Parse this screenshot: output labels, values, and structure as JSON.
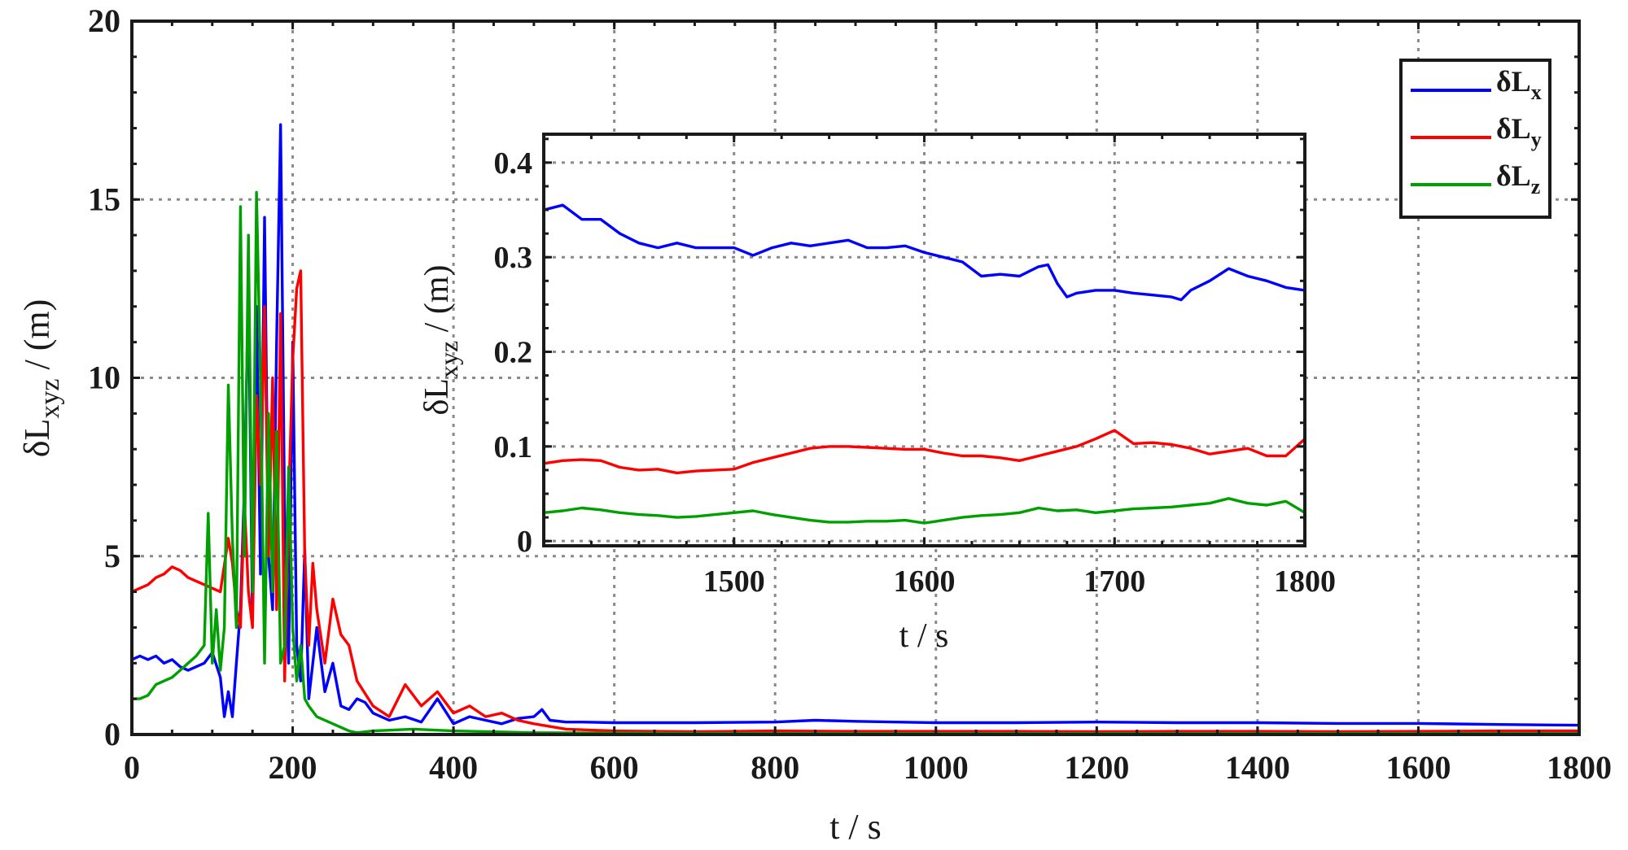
{
  "colors": {
    "x": "#0000ff",
    "y": "#ff0000",
    "z": "#00a000",
    "grid": "#8a8a8a",
    "axis": "#1a1a1a"
  },
  "chart_data": [
    {
      "type": "line",
      "xlabel": "t / s",
      "ylabel_main": "δL",
      "ylabel_sub": "xyz",
      "ylabel_unit": " / (m)",
      "xlim": [
        0,
        1800
      ],
      "ylim": [
        0,
        20
      ],
      "xticks": [
        0,
        200,
        400,
        600,
        800,
        1000,
        1200,
        1400,
        1600,
        1800
      ],
      "yticks": [
        0,
        5,
        10,
        15,
        20
      ],
      "grid": true,
      "legend_position": "top-right",
      "legend": [
        {
          "key": "x",
          "main": "δL",
          "sub": "x"
        },
        {
          "key": "y",
          "main": "δL",
          "sub": "y"
        },
        {
          "key": "z",
          "main": "δL",
          "sub": "z"
        }
      ],
      "series": [
        {
          "key": "x",
          "name": "δLx",
          "x": [
            0,
            10,
            20,
            30,
            40,
            50,
            60,
            70,
            80,
            90,
            100,
            110,
            115,
            120,
            125,
            130,
            135,
            140,
            145,
            150,
            155,
            160,
            165,
            170,
            175,
            180,
            185,
            190,
            195,
            200,
            205,
            210,
            215,
            220,
            225,
            230,
            240,
            250,
            260,
            270,
            280,
            290,
            300,
            320,
            340,
            360,
            380,
            400,
            420,
            440,
            460,
            480,
            500,
            510,
            520,
            540,
            560,
            600,
            700,
            800,
            850,
            900,
            1000,
            1100,
            1200,
            1300,
            1400,
            1500,
            1600,
            1700,
            1800
          ],
          "y": [
            2.1,
            2.2,
            2.1,
            2.2,
            2.0,
            2.1,
            1.9,
            1.8,
            1.9,
            2.0,
            2.3,
            1.6,
            0.5,
            1.2,
            0.5,
            2.0,
            3.5,
            7.0,
            12.5,
            3.2,
            12.0,
            4.5,
            14.5,
            5.0,
            3.5,
            11.0,
            17.1,
            6.0,
            2.0,
            11.0,
            2.5,
            1.5,
            5.2,
            1.0,
            2.0,
            3.0,
            1.2,
            2.0,
            0.8,
            0.7,
            1.0,
            0.9,
            0.6,
            0.4,
            0.5,
            0.35,
            1.0,
            0.3,
            0.5,
            0.4,
            0.3,
            0.45,
            0.5,
            0.7,
            0.4,
            0.35,
            0.35,
            0.33,
            0.33,
            0.35,
            0.4,
            0.37,
            0.33,
            0.33,
            0.35,
            0.33,
            0.33,
            0.31,
            0.31,
            0.28,
            0.26
          ]
        },
        {
          "key": "y",
          "name": "δLy",
          "x": [
            0,
            10,
            20,
            30,
            40,
            50,
            60,
            70,
            80,
            90,
            100,
            110,
            120,
            125,
            130,
            135,
            140,
            145,
            150,
            155,
            160,
            165,
            170,
            175,
            180,
            185,
            190,
            195,
            200,
            205,
            210,
            215,
            220,
            225,
            230,
            240,
            250,
            260,
            270,
            280,
            300,
            320,
            340,
            360,
            380,
            400,
            420,
            440,
            460,
            480,
            500,
            540,
            600,
            700,
            800,
            900,
            1000,
            1100,
            1200,
            1300,
            1400,
            1500,
            1600,
            1700,
            1800
          ],
          "y": [
            4.0,
            4.1,
            4.2,
            4.4,
            4.5,
            4.7,
            4.6,
            4.4,
            4.3,
            4.2,
            4.1,
            4.0,
            5.5,
            4.8,
            3.5,
            3.0,
            6.5,
            4.0,
            3.0,
            9.5,
            7.0,
            12.0,
            5.0,
            10.0,
            3.5,
            11.8,
            1.5,
            6.5,
            10.5,
            12.5,
            13.0,
            5.0,
            2.5,
            4.8,
            3.5,
            2.0,
            3.8,
            2.8,
            2.5,
            1.5,
            0.8,
            0.5,
            1.4,
            0.8,
            1.2,
            0.6,
            0.8,
            0.5,
            0.6,
            0.4,
            0.3,
            0.15,
            0.1,
            0.08,
            0.1,
            0.09,
            0.09,
            0.09,
            0.08,
            0.09,
            0.09,
            0.08,
            0.09,
            0.1,
            0.1
          ]
        },
        {
          "key": "z",
          "name": "δLz",
          "x": [
            0,
            10,
            20,
            30,
            40,
            50,
            60,
            70,
            80,
            90,
            95,
            100,
            105,
            110,
            115,
            120,
            125,
            130,
            135,
            140,
            145,
            150,
            155,
            160,
            165,
            170,
            175,
            180,
            185,
            190,
            195,
            200,
            205,
            210,
            215,
            220,
            230,
            240,
            250,
            260,
            270,
            280,
            300,
            350,
            400,
            500,
            600,
            800,
            1000,
            1200,
            1400,
            1600,
            1800
          ],
          "y": [
            1.0,
            1.0,
            1.1,
            1.4,
            1.5,
            1.6,
            1.8,
            2.0,
            2.2,
            2.5,
            6.2,
            2.0,
            3.5,
            1.8,
            3.0,
            9.8,
            5.5,
            3.0,
            14.8,
            5.0,
            14.0,
            4.0,
            15.2,
            10.0,
            2.0,
            9.0,
            4.0,
            8.5,
            2.0,
            2.5,
            7.5,
            3.0,
            1.5,
            2.5,
            1.0,
            0.8,
            0.5,
            0.4,
            0.3,
            0.2,
            0.1,
            0.05,
            0.1,
            0.15,
            0.1,
            0.05,
            0.04,
            0.03,
            0.03,
            0.03,
            0.03,
            0.03,
            0.03
          ]
        }
      ]
    },
    {
      "type": "line",
      "xlabel": "t / s",
      "ylabel_main": "δL",
      "ylabel_sub": "xyz",
      "ylabel_unit": " / (m)",
      "xlim": [
        1400,
        1800
      ],
      "ylim": [
        -0.005,
        0.43
      ],
      "xticks": [
        1500,
        1600,
        1700,
        1800
      ],
      "yticks": [
        0,
        0.1,
        0.2,
        0.3,
        0.4
      ],
      "ytick_labels": [
        "0",
        "0.1",
        "0.2",
        "0.3",
        "0.4"
      ],
      "grid": true,
      "series": [
        {
          "key": "x",
          "name": "δLx",
          "x": [
            1400,
            1410,
            1420,
            1430,
            1440,
            1450,
            1460,
            1470,
            1480,
            1490,
            1500,
            1510,
            1520,
            1530,
            1540,
            1550,
            1560,
            1570,
            1580,
            1590,
            1600,
            1610,
            1620,
            1630,
            1640,
            1650,
            1660,
            1665,
            1670,
            1675,
            1680,
            1690,
            1700,
            1710,
            1720,
            1730,
            1735,
            1740,
            1750,
            1760,
            1770,
            1780,
            1790,
            1800
          ],
          "y": [
            0.35,
            0.355,
            0.34,
            0.34,
            0.325,
            0.315,
            0.31,
            0.315,
            0.31,
            0.31,
            0.31,
            0.302,
            0.31,
            0.315,
            0.312,
            0.315,
            0.318,
            0.31,
            0.31,
            0.312,
            0.305,
            0.3,
            0.295,
            0.28,
            0.282,
            0.28,
            0.29,
            0.292,
            0.272,
            0.258,
            0.262,
            0.265,
            0.265,
            0.262,
            0.26,
            0.258,
            0.255,
            0.265,
            0.275,
            0.288,
            0.28,
            0.275,
            0.268,
            0.265
          ]
        },
        {
          "key": "y",
          "name": "δLy",
          "x": [
            1400,
            1410,
            1420,
            1430,
            1440,
            1450,
            1460,
            1470,
            1480,
            1490,
            1500,
            1510,
            1520,
            1530,
            1540,
            1550,
            1560,
            1570,
            1580,
            1590,
            1600,
            1610,
            1620,
            1630,
            1640,
            1650,
            1660,
            1670,
            1680,
            1690,
            1700,
            1710,
            1720,
            1730,
            1740,
            1750,
            1760,
            1770,
            1780,
            1790,
            1800
          ],
          "y": [
            0.082,
            0.085,
            0.086,
            0.085,
            0.078,
            0.075,
            0.076,
            0.072,
            0.074,
            0.075,
            0.076,
            0.083,
            0.088,
            0.093,
            0.098,
            0.1,
            0.1,
            0.099,
            0.098,
            0.097,
            0.097,
            0.093,
            0.09,
            0.09,
            0.088,
            0.085,
            0.09,
            0.095,
            0.1,
            0.108,
            0.117,
            0.103,
            0.104,
            0.102,
            0.098,
            0.092,
            0.095,
            0.098,
            0.09,
            0.09,
            0.108
          ]
        },
        {
          "key": "z",
          "name": "δLz",
          "x": [
            1400,
            1410,
            1420,
            1430,
            1440,
            1450,
            1460,
            1470,
            1480,
            1490,
            1500,
            1510,
            1520,
            1530,
            1540,
            1550,
            1560,
            1570,
            1580,
            1590,
            1600,
            1610,
            1620,
            1630,
            1640,
            1650,
            1660,
            1670,
            1680,
            1690,
            1700,
            1710,
            1720,
            1730,
            1740,
            1750,
            1760,
            1770,
            1780,
            1790,
            1800
          ],
          "y": [
            0.03,
            0.032,
            0.035,
            0.033,
            0.03,
            0.028,
            0.027,
            0.025,
            0.026,
            0.028,
            0.03,
            0.032,
            0.028,
            0.025,
            0.022,
            0.02,
            0.02,
            0.021,
            0.021,
            0.022,
            0.019,
            0.022,
            0.025,
            0.027,
            0.028,
            0.03,
            0.035,
            0.032,
            0.033,
            0.03,
            0.032,
            0.034,
            0.035,
            0.036,
            0.038,
            0.04,
            0.045,
            0.04,
            0.038,
            0.042,
            0.03
          ]
        }
      ]
    }
  ]
}
